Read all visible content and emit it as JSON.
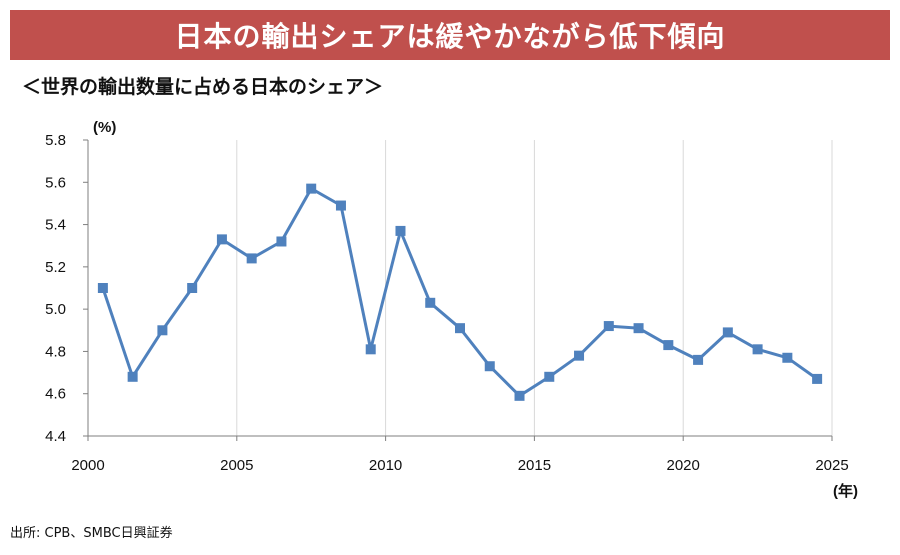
{
  "header": {
    "title": "日本の輸出シェアは緩やかながら低下傾向",
    "subtitle": "＜世界の輸出数量に占める日本のシェア＞"
  },
  "footer": {
    "source": "出所: CPB、SMBC日興証券"
  },
  "colors": {
    "banner": "#c0504d",
    "series": "#4f81bd",
    "grid": "#d9d9d9",
    "axis": "#7f7f7f"
  },
  "chart_data": {
    "type": "line",
    "title": "",
    "ylabel": "(%)",
    "xlabel": "(年)",
    "ylim": [
      4.4,
      5.8
    ],
    "xlim": [
      2000,
      2025
    ],
    "yticks": [
      "4.4",
      "4.6",
      "4.8",
      "5.0",
      "5.2",
      "5.4",
      "5.6",
      "5.8"
    ],
    "xticks": [
      "2000",
      "2005",
      "2010",
      "2015",
      "2020",
      "2025"
    ],
    "grid": "vertical",
    "legend": "none",
    "series": [
      {
        "marker": "square",
        "x": [
          2000.5,
          2001.5,
          2002.5,
          2003.5,
          2004.5,
          2005.5,
          2006.5,
          2007.5,
          2008.5,
          2009.5,
          2010.5,
          2011.5,
          2012.5,
          2013.5,
          2014.5,
          2015.5,
          2016.5,
          2017.5,
          2018.5,
          2019.5,
          2020.5,
          2021.5,
          2022.5,
          2023.5,
          2024.5
        ],
        "values": [
          5.1,
          4.68,
          4.9,
          5.1,
          5.33,
          5.24,
          5.32,
          5.57,
          5.49,
          4.81,
          5.37,
          5.03,
          4.91,
          4.73,
          4.59,
          4.68,
          4.78,
          4.92,
          4.91,
          4.83,
          4.76,
          4.89,
          4.81,
          4.77,
          4.67
        ]
      }
    ]
  }
}
